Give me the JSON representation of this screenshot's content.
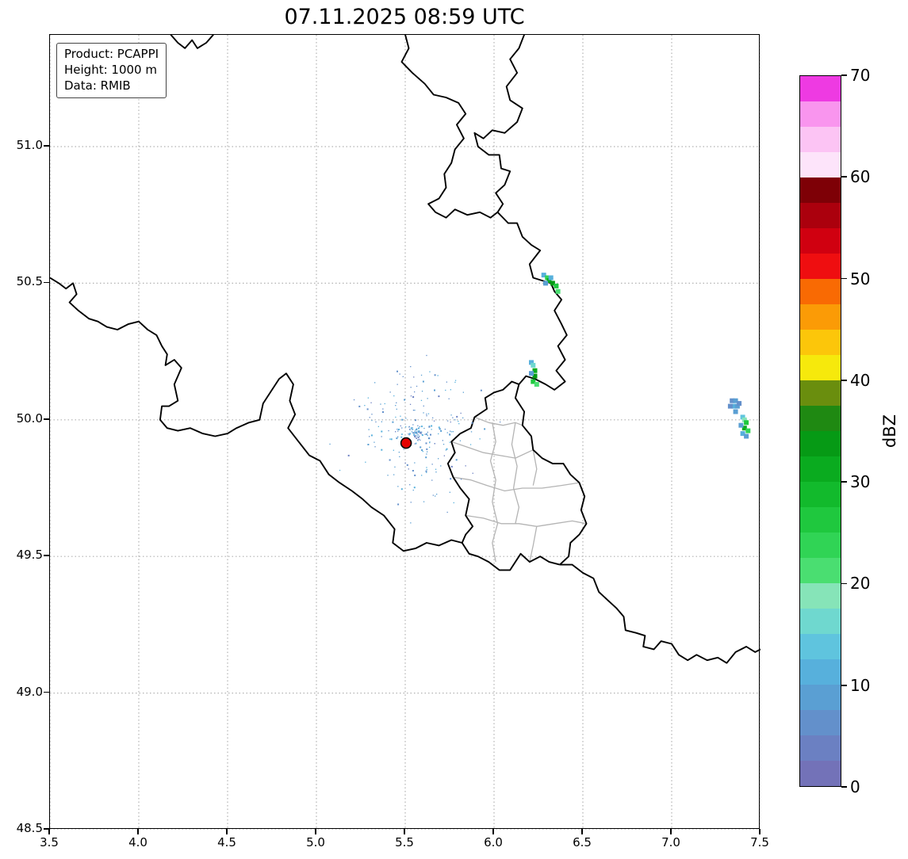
{
  "title": "07.11.2025 08:59 UTC",
  "info_box": {
    "lines": [
      "Product: PCAPPI",
      "Height: 1000 m",
      "Data: RMIB"
    ]
  },
  "axes": {
    "lon_range": [
      3.5,
      7.5
    ],
    "lat_range": [
      48.5,
      51.409
    ],
    "x_ticks": [
      3.5,
      4.0,
      4.5,
      5.0,
      5.5,
      6.0,
      6.5,
      7.0,
      7.5
    ],
    "x_tick_labels": [
      "3.5",
      "4.0",
      "4.5",
      "5.0",
      "5.5",
      "6.0",
      "6.5",
      "7.0",
      "7.5"
    ],
    "y_ticks": [
      51.0,
      50.5,
      50.0,
      49.5,
      49.0,
      48.5
    ],
    "y_tick_labels": [
      "51.0",
      "50.5",
      "50.0",
      "49.5",
      "49.0",
      "48.5"
    ],
    "grid": "dotted"
  },
  "colorbar": {
    "label": "dBZ",
    "min": 0,
    "max": 70,
    "step_dbz": 2.5,
    "tick_values": [
      0,
      10,
      20,
      30,
      40,
      50,
      60,
      70
    ],
    "tick_labels": [
      "0",
      "10",
      "20",
      "30",
      "40",
      "50",
      "60",
      "70"
    ],
    "colors_bottom_to_top": [
      "#7372b8",
      "#6b80c2",
      "#6390cb",
      "#5a9fd3",
      "#57b0dc",
      "#5fc4de",
      "#6fd8cf",
      "#86e4b8",
      "#4ade71",
      "#30d455",
      "#1fc83e",
      "#12ba2c",
      "#0aab1f",
      "#069a15",
      "#1f8912",
      "#6a8e0e",
      "#f6e90c",
      "#fcc60a",
      "#fb9b06",
      "#f96a03",
      "#ef0e10",
      "#d00010",
      "#ab000d",
      "#7e0006",
      "#fde4fa",
      "#fcc4f4",
      "#f995ee",
      "#ee3ae2"
    ]
  },
  "chart_data": {
    "type": "heatmap",
    "title": "07.11.2025 08:59 UTC",
    "product": "PCAPPI",
    "height_level": "1000 m",
    "source": "RMIB",
    "units": "dBZ",
    "extent": {
      "lon": [
        3.5,
        7.5
      ],
      "lat": [
        48.5,
        51.409
      ]
    },
    "radar_site": {
      "lon": 5.505,
      "lat": 49.915,
      "marker": "red-circle",
      "color": "#e50000"
    },
    "echoes": [
      {
        "name": "eifel-north-streak",
        "cells": [
          [
            6.28,
            50.53,
            10
          ],
          [
            6.3,
            50.52,
            24
          ],
          [
            6.31,
            50.51,
            31
          ],
          [
            6.33,
            50.5,
            33
          ],
          [
            6.35,
            50.49,
            27
          ],
          [
            6.36,
            50.47,
            22
          ],
          [
            6.32,
            50.52,
            12
          ],
          [
            6.29,
            50.5,
            8
          ]
        ]
      },
      {
        "name": "eifel-south-streak",
        "cells": [
          [
            6.21,
            50.21,
            12
          ],
          [
            6.22,
            50.2,
            16
          ],
          [
            6.23,
            50.18,
            31
          ],
          [
            6.23,
            50.16,
            33
          ],
          [
            6.22,
            50.14,
            27
          ],
          [
            6.21,
            50.17,
            9
          ],
          [
            6.24,
            50.13,
            22
          ]
        ]
      },
      {
        "name": "east-cluster-blue",
        "cells": [
          [
            7.34,
            50.07,
            7
          ],
          [
            7.36,
            50.07,
            9
          ],
          [
            7.35,
            50.05,
            11
          ],
          [
            7.37,
            50.05,
            8
          ],
          [
            7.33,
            50.05,
            7
          ],
          [
            7.36,
            50.03,
            9
          ],
          [
            7.38,
            50.06,
            6
          ]
        ]
      },
      {
        "name": "east-cluster-green",
        "cells": [
          [
            7.4,
            50.01,
            14
          ],
          [
            7.41,
            50.0,
            18
          ],
          [
            7.42,
            49.99,
            27
          ],
          [
            7.41,
            49.97,
            31
          ],
          [
            7.43,
            49.96,
            24
          ],
          [
            7.4,
            49.95,
            12
          ],
          [
            7.42,
            49.94,
            8
          ],
          [
            7.39,
            49.98,
            9
          ]
        ]
      }
    ],
    "clutter": {
      "seed": 12,
      "count": 300,
      "center": [
        5.56,
        49.95
      ],
      "spread": [
        0.5,
        0.38
      ],
      "dbz_range": [
        4,
        12
      ]
    }
  },
  "map_borders": {
    "national": [
      [
        [
          4.18,
          51.41
        ],
        [
          4.22,
          51.38
        ],
        [
          4.26,
          51.36
        ],
        [
          4.3,
          51.39
        ],
        [
          4.33,
          51.36
        ],
        [
          4.38,
          51.38
        ],
        [
          4.42,
          51.41
        ]
      ],
      [
        [
          5.5,
          51.41
        ],
        [
          5.52,
          51.36
        ],
        [
          5.48,
          51.31
        ],
        [
          5.54,
          51.27
        ],
        [
          5.61,
          51.23
        ],
        [
          5.66,
          51.19
        ],
        [
          5.73,
          51.18
        ],
        [
          5.8,
          51.16
        ],
        [
          5.84,
          51.12
        ],
        [
          5.79,
          51.08
        ],
        [
          5.83,
          51.03
        ],
        [
          5.78,
          50.99
        ],
        [
          5.76,
          50.94
        ],
        [
          5.72,
          50.9
        ],
        [
          5.73,
          50.85
        ],
        [
          5.69,
          50.81
        ],
        [
          5.63,
          50.79
        ],
        [
          5.67,
          50.76
        ],
        [
          5.73,
          50.74
        ],
        [
          5.78,
          50.77
        ],
        [
          5.85,
          50.75
        ],
        [
          5.92,
          50.76
        ],
        [
          5.98,
          50.74
        ],
        [
          6.02,
          50.76
        ]
      ],
      [
        [
          6.17,
          51.41
        ],
        [
          6.14,
          51.36
        ],
        [
          6.09,
          51.32
        ],
        [
          6.13,
          51.27
        ],
        [
          6.07,
          51.22
        ],
        [
          6.09,
          51.17
        ],
        [
          6.16,
          51.14
        ],
        [
          6.13,
          51.09
        ],
        [
          6.06,
          51.05
        ],
        [
          5.99,
          51.06
        ],
        [
          5.94,
          51.03
        ],
        [
          5.89,
          51.05
        ],
        [
          5.91,
          51.0
        ],
        [
          5.97,
          50.97
        ],
        [
          6.03,
          50.97
        ],
        [
          6.04,
          50.92
        ],
        [
          6.09,
          50.91
        ],
        [
          6.06,
          50.86
        ],
        [
          6.01,
          50.83
        ],
        [
          6.05,
          50.79
        ],
        [
          6.02,
          50.76
        ]
      ],
      [
        [
          6.02,
          50.76
        ],
        [
          6.08,
          50.72
        ],
        [
          6.13,
          50.72
        ],
        [
          6.16,
          50.67
        ],
        [
          6.21,
          50.64
        ],
        [
          6.26,
          50.62
        ],
        [
          6.2,
          50.57
        ],
        [
          6.22,
          50.52
        ],
        [
          6.27,
          50.51
        ],
        [
          6.32,
          50.5
        ],
        [
          6.34,
          50.47
        ],
        [
          6.38,
          50.44
        ],
        [
          6.34,
          50.4
        ],
        [
          6.38,
          50.35
        ],
        [
          6.41,
          50.31
        ],
        [
          6.36,
          50.27
        ],
        [
          6.4,
          50.22
        ],
        [
          6.35,
          50.18
        ],
        [
          6.4,
          50.14
        ],
        [
          6.34,
          50.11
        ],
        [
          6.29,
          50.13
        ],
        [
          6.23,
          50.15
        ],
        [
          6.18,
          50.16
        ],
        [
          6.14,
          50.13
        ]
      ],
      [
        [
          6.14,
          50.13
        ],
        [
          6.1,
          50.14
        ],
        [
          6.05,
          50.11
        ],
        [
          6.0,
          50.1
        ],
        [
          5.95,
          50.08
        ],
        [
          5.96,
          50.04
        ],
        [
          5.89,
          50.01
        ],
        [
          5.87,
          49.97
        ],
        [
          5.81,
          49.95
        ],
        [
          5.76,
          49.92
        ],
        [
          5.78,
          49.88
        ],
        [
          5.74,
          49.84
        ],
        [
          5.77,
          49.79
        ],
        [
          5.81,
          49.75
        ],
        [
          5.86,
          49.71
        ],
        [
          5.84,
          49.65
        ],
        [
          5.88,
          49.61
        ],
        [
          5.84,
          49.58
        ],
        [
          5.82,
          49.55
        ]
      ],
      [
        [
          6.14,
          50.13
        ],
        [
          6.12,
          50.08
        ],
        [
          6.17,
          50.03
        ],
        [
          6.16,
          49.98
        ],
        [
          6.21,
          49.94
        ],
        [
          6.22,
          49.89
        ],
        [
          6.27,
          49.86
        ],
        [
          6.33,
          49.84
        ],
        [
          6.39,
          49.84
        ],
        [
          6.43,
          49.8
        ],
        [
          6.48,
          49.77
        ],
        [
          6.51,
          49.72
        ],
        [
          6.49,
          49.67
        ],
        [
          6.52,
          49.62
        ],
        [
          6.48,
          49.58
        ],
        [
          6.43,
          49.55
        ],
        [
          6.42,
          49.5
        ],
        [
          6.37,
          49.47
        ]
      ],
      [
        [
          6.37,
          49.47
        ],
        [
          6.31,
          49.48
        ],
        [
          6.26,
          49.5
        ],
        [
          6.2,
          49.48
        ],
        [
          6.15,
          49.51
        ],
        [
          6.09,
          49.45
        ],
        [
          6.03,
          49.45
        ],
        [
          5.97,
          49.48
        ],
        [
          5.91,
          49.5
        ],
        [
          5.86,
          49.51
        ],
        [
          5.82,
          49.55
        ]
      ],
      [
        [
          3.5,
          50.52
        ],
        [
          3.55,
          50.5
        ],
        [
          3.59,
          50.48
        ],
        [
          3.63,
          50.5
        ],
        [
          3.65,
          50.46
        ],
        [
          3.61,
          50.43
        ],
        [
          3.66,
          50.4
        ],
        [
          3.72,
          50.37
        ],
        [
          3.77,
          50.36
        ],
        [
          3.82,
          50.34
        ],
        [
          3.88,
          50.33
        ],
        [
          3.94,
          50.35
        ],
        [
          4.0,
          50.36
        ],
        [
          4.05,
          50.33
        ],
        [
          4.1,
          50.31
        ],
        [
          4.13,
          50.27
        ],
        [
          4.16,
          50.24
        ],
        [
          4.15,
          50.2
        ],
        [
          4.2,
          50.22
        ],
        [
          4.24,
          50.19
        ],
        [
          4.2,
          50.13
        ],
        [
          4.22,
          50.07
        ],
        [
          4.17,
          50.05
        ],
        [
          4.13,
          50.05
        ],
        [
          4.12,
          50.0
        ],
        [
          4.16,
          49.97
        ],
        [
          4.22,
          49.96
        ],
        [
          4.29,
          49.97
        ],
        [
          4.36,
          49.95
        ],
        [
          4.43,
          49.94
        ],
        [
          4.5,
          49.95
        ],
        [
          4.55,
          49.97
        ],
        [
          4.62,
          49.99
        ],
        [
          4.68,
          50.0
        ],
        [
          4.7,
          50.06
        ],
        [
          4.75,
          50.11
        ],
        [
          4.79,
          50.15
        ],
        [
          4.83,
          50.17
        ],
        [
          4.87,
          50.13
        ],
        [
          4.85,
          50.07
        ],
        [
          4.88,
          50.02
        ],
        [
          4.84,
          49.97
        ],
        [
          4.9,
          49.92
        ],
        [
          4.96,
          49.87
        ],
        [
          5.02,
          49.85
        ],
        [
          5.07,
          49.8
        ],
        [
          5.13,
          49.77
        ],
        [
          5.2,
          49.74
        ],
        [
          5.26,
          49.71
        ],
        [
          5.31,
          49.68
        ],
        [
          5.38,
          49.65
        ],
        [
          5.44,
          49.6
        ],
        [
          5.43,
          49.55
        ],
        [
          5.49,
          49.52
        ],
        [
          5.56,
          49.53
        ],
        [
          5.62,
          49.55
        ],
        [
          5.69,
          49.54
        ],
        [
          5.76,
          49.56
        ],
        [
          5.82,
          49.55
        ]
      ],
      [
        [
          6.37,
          49.47
        ],
        [
          6.44,
          49.47
        ],
        [
          6.5,
          49.44
        ],
        [
          6.56,
          49.42
        ],
        [
          6.59,
          49.37
        ],
        [
          6.64,
          49.34
        ],
        [
          6.69,
          49.31
        ],
        [
          6.73,
          49.28
        ],
        [
          6.74,
          49.23
        ],
        [
          6.8,
          49.22
        ],
        [
          6.85,
          49.21
        ],
        [
          6.84,
          49.17
        ],
        [
          6.9,
          49.16
        ],
        [
          6.94,
          49.19
        ],
        [
          7.0,
          49.18
        ],
        [
          7.04,
          49.14
        ],
        [
          7.09,
          49.12
        ],
        [
          7.14,
          49.14
        ],
        [
          7.2,
          49.12
        ],
        [
          7.26,
          49.13
        ],
        [
          7.31,
          49.11
        ],
        [
          7.36,
          49.15
        ],
        [
          7.42,
          49.17
        ],
        [
          7.47,
          49.15
        ],
        [
          7.5,
          49.16
        ]
      ]
    ],
    "regional": [
      [
        [
          5.89,
          50.01
        ],
        [
          5.97,
          49.99
        ],
        [
          6.05,
          49.98
        ],
        [
          6.12,
          49.99
        ],
        [
          6.16,
          49.98
        ]
      ],
      [
        [
          5.76,
          49.92
        ],
        [
          5.85,
          49.9
        ],
        [
          5.94,
          49.88
        ],
        [
          6.03,
          49.87
        ],
        [
          6.12,
          49.86
        ],
        [
          6.22,
          49.89
        ]
      ],
      [
        [
          5.77,
          49.79
        ],
        [
          5.87,
          49.78
        ],
        [
          5.96,
          49.76
        ],
        [
          6.06,
          49.74
        ],
        [
          6.16,
          49.75
        ],
        [
          6.27,
          49.75
        ],
        [
          6.38,
          49.76
        ],
        [
          6.48,
          49.77
        ]
      ],
      [
        [
          5.84,
          49.65
        ],
        [
          5.94,
          49.64
        ],
        [
          6.04,
          49.62
        ],
        [
          6.14,
          49.62
        ],
        [
          6.24,
          49.61
        ],
        [
          6.34,
          49.62
        ],
        [
          6.44,
          49.63
        ],
        [
          6.52,
          49.62
        ]
      ],
      [
        [
          5.99,
          49.99
        ],
        [
          6.01,
          49.92
        ],
        [
          5.98,
          49.85
        ],
        [
          6.01,
          49.78
        ],
        [
          5.99,
          49.7
        ],
        [
          6.02,
          49.62
        ],
        [
          5.99,
          49.55
        ],
        [
          6.01,
          49.48
        ]
      ],
      [
        [
          6.12,
          49.99
        ],
        [
          6.1,
          49.91
        ],
        [
          6.13,
          49.83
        ],
        [
          6.11,
          49.75
        ],
        [
          6.14,
          49.68
        ],
        [
          6.12,
          49.62
        ]
      ],
      [
        [
          6.22,
          49.89
        ],
        [
          6.24,
          49.82
        ],
        [
          6.22,
          49.76
        ]
      ],
      [
        [
          6.24,
          49.61
        ],
        [
          6.22,
          49.54
        ],
        [
          6.2,
          49.48
        ]
      ]
    ]
  }
}
